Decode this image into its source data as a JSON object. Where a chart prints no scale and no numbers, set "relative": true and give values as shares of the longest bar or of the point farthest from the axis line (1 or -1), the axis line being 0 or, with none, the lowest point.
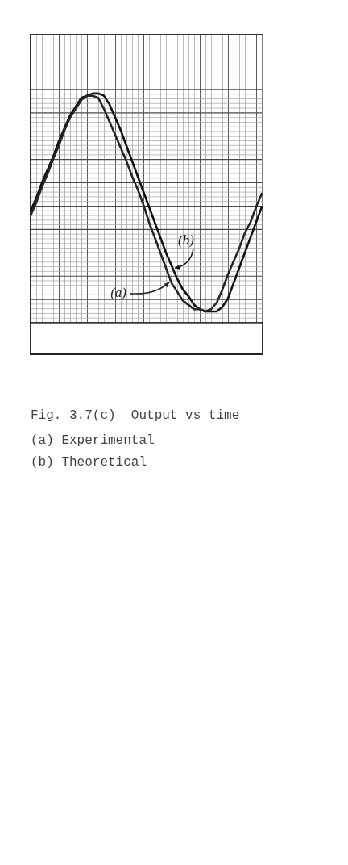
{
  "chart_data": {
    "type": "line",
    "title": "Fig. 3.7(c)  Output vs time",
    "annotations": [
      "(a) Experimental",
      "(b) Theoretical"
    ],
    "categories": [
      null,
      null,
      null,
      null,
      null,
      null,
      null,
      null,
      null,
      null,
      null,
      null,
      null,
      null,
      null,
      null,
      null,
      null,
      null,
      null,
      null,
      null,
      null,
      null,
      null,
      null,
      null,
      null,
      null,
      null,
      null,
      null,
      null,
      null,
      null,
      null,
      null,
      null,
      null,
      null,
      null,
      null
    ],
    "series": [
      {
        "name": "(a)",
        "color": "#262626",
        "values": [
          0.44,
          0.5,
          0.57,
          0.63,
          0.7,
          0.76,
          0.83,
          0.89,
          0.93,
          0.97,
          0.99,
          0.99,
          0.98,
          0.93,
          0.87,
          0.81,
          0.75,
          0.69,
          0.62,
          0.56,
          0.49,
          0.41,
          0.34,
          0.27,
          0.2,
          0.13,
          0.09,
          0.05,
          0.03,
          0.01,
          0.01,
          0.0,
          0.01,
          0.04,
          0.1,
          0.17,
          0.23,
          0.29,
          0.36,
          0.41,
          0.48,
          0.54
        ]
      },
      {
        "name": "(b)",
        "color": "#111111",
        "values": [
          0.46,
          0.52,
          0.59,
          0.65,
          0.71,
          0.78,
          0.84,
          0.9,
          0.94,
          0.98,
          0.99,
          1.0,
          1.0,
          0.99,
          0.95,
          0.89,
          0.83,
          0.76,
          0.69,
          0.62,
          0.55,
          0.48,
          0.41,
          0.34,
          0.27,
          0.21,
          0.15,
          0.1,
          0.07,
          0.03,
          0.01,
          0.0,
          0.0,
          0.0,
          0.02,
          0.06,
          0.13,
          0.2,
          0.27,
          0.34,
          0.41,
          0.48
        ]
      }
    ],
    "relative": true,
    "grid": true,
    "marker": "none"
  }
}
